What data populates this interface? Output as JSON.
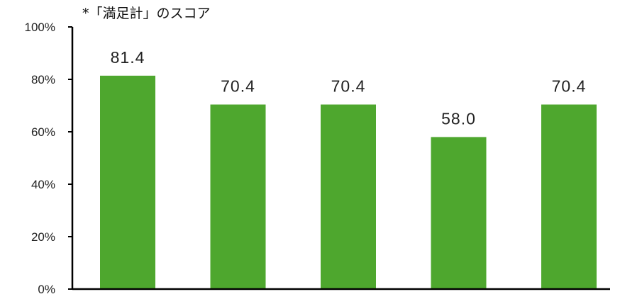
{
  "chart_data": {
    "type": "bar",
    "title": "*「満足計」のスコア",
    "categories": [
      "",
      "",
      "",
      "",
      ""
    ],
    "values": [
      81.4,
      70.4,
      70.4,
      58.0,
      70.4
    ],
    "value_labels": [
      "81.4",
      "70.4",
      "70.4",
      "58.0",
      "70.4"
    ],
    "ylim": [
      0,
      100
    ],
    "yticks": [
      0,
      20,
      40,
      60,
      80,
      100
    ],
    "ytick_labels": [
      "0%",
      "20%",
      "40%",
      "60%",
      "80%",
      "100%"
    ],
    "xlabel": "",
    "ylabel": "",
    "grid": false,
    "colors": {
      "bar": "#4EA72E",
      "axis": "#000000",
      "text": "#222222"
    }
  }
}
